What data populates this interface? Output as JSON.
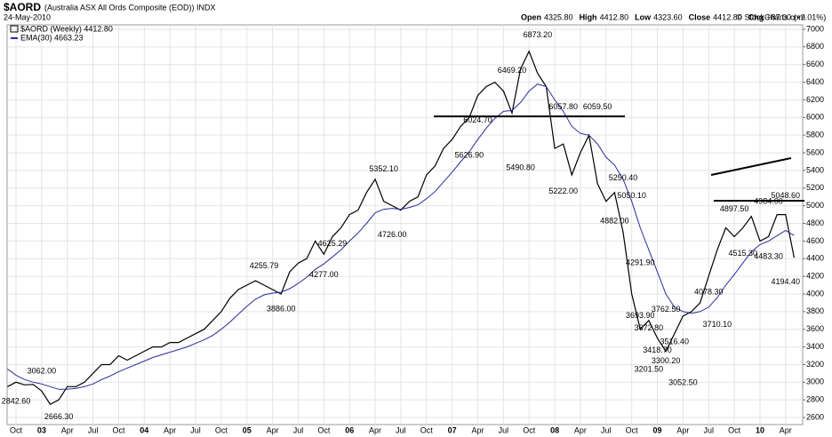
{
  "chart_data": {
    "type": "line",
    "title": "$AORD",
    "subtitle": "(Australia ASX All Ords Composite (EOD)) INDX",
    "date": "24-May-2010",
    "quote": [
      {
        "label": "Open",
        "value": "4325.80"
      },
      {
        "label": "High",
        "value": "4412.80"
      },
      {
        "label": "Low",
        "value": "4323.60"
      },
      {
        "label": "Close",
        "value": "4412.80"
      },
      {
        "label": "Chg",
        "value": "+87.00 (+2.01%)"
      }
    ],
    "credit": "© StockCharts.com",
    "categories": [
      null,
      "Oct",
      null,
      null,
      "03",
      null,
      null,
      "Apr",
      null,
      null,
      "Jul",
      null,
      null,
      "Oct",
      null,
      null,
      "04",
      null,
      null,
      "Apr",
      null,
      null,
      "Jul",
      null,
      null,
      "Oct",
      null,
      null,
      "05",
      null,
      null,
      "Apr",
      null,
      null,
      "Jul",
      null,
      null,
      "Oct",
      null,
      null,
      "06",
      null,
      null,
      "Apr",
      null,
      null,
      "Jul",
      null,
      null,
      "Oct",
      null,
      null,
      "07",
      null,
      null,
      "Apr",
      null,
      null,
      "Jul",
      null,
      null,
      "Oct",
      null,
      null,
      "08",
      null,
      null,
      "Apr",
      null,
      null,
      "Jul",
      null,
      null,
      "Oct",
      null,
      null,
      "09",
      null,
      null,
      "Apr",
      null,
      null,
      "Jul",
      null,
      null,
      "Oct",
      null,
      null,
      "10",
      null,
      null,
      "Apr",
      null
    ],
    "series": [
      {
        "name": "$AORD (Weekly) 4412.80",
        "color": "#000000",
        "values": [
          2950,
          3000,
          2970,
          2975,
          2900,
          2750,
          2800,
          2950,
          2950,
          3000,
          3100,
          3200,
          3200,
          3300,
          3250,
          3300,
          3350,
          3400,
          3400,
          3450,
          3450,
          3500,
          3550,
          3600,
          3700,
          3800,
          3950,
          4050,
          4100,
          4150,
          4100,
          4050,
          4000,
          4250,
          4350,
          4400,
          4600,
          4450,
          4650,
          4750,
          4900,
          4950,
          5150,
          5300,
          5050,
          5000,
          4950,
          5050,
          5100,
          5350,
          5450,
          5650,
          5750,
          5900,
          6000,
          6250,
          6350,
          6400,
          6300,
          6050,
          6550,
          6750,
          6500,
          6350,
          5650,
          5700,
          5350,
          5600,
          5800,
          5250,
          5050,
          5150,
          4700,
          4000,
          3600,
          3700,
          3500,
          3350,
          3550,
          3750,
          3800,
          3900,
          4200,
          4500,
          4750,
          4650,
          4750,
          4880,
          4600,
          4650,
          4900,
          4900,
          4412
        ]
      },
      {
        "name": "EMA(30) 4663.23",
        "color": "#2b2b9b",
        "values": [
          3150,
          3080,
          3030,
          3000,
          2980,
          2950,
          2920,
          2920,
          2930,
          2950,
          2980,
          3030,
          3070,
          3120,
          3160,
          3200,
          3240,
          3280,
          3310,
          3340,
          3370,
          3400,
          3440,
          3480,
          3530,
          3600,
          3680,
          3770,
          3860,
          3940,
          3990,
          4010,
          4020,
          4060,
          4120,
          4190,
          4280,
          4340,
          4420,
          4500,
          4600,
          4690,
          4800,
          4920,
          4960,
          4970,
          4960,
          4980,
          5010,
          5080,
          5160,
          5270,
          5380,
          5500,
          5610,
          5750,
          5880,
          5990,
          6070,
          6080,
          6170,
          6300,
          6380,
          6350,
          6200,
          6070,
          5900,
          5820,
          5800,
          5700,
          5550,
          5460,
          5300,
          5050,
          4750,
          4500,
          4250,
          4000,
          3850,
          3800,
          3780,
          3800,
          3850,
          3960,
          4100,
          4220,
          4350,
          4480,
          4560,
          4600,
          4660,
          4720,
          4663
        ]
      }
    ],
    "annotations": [
      {
        "label": "2842.60",
        "value": 2842.6,
        "index": 1
      },
      {
        "label": "3062.00",
        "value": 3062,
        "index": 4
      },
      {
        "label": "2666.30",
        "value": 2666.3,
        "index": 6
      },
      {
        "label": "4255.79",
        "value": 4255.79,
        "index": 30
      },
      {
        "label": "3886.00",
        "value": 3886,
        "index": 32
      },
      {
        "label": "4277.00",
        "value": 4277,
        "index": 37
      },
      {
        "label": "4625.29",
        "value": 4625.29,
        "index": 38
      },
      {
        "label": "5352.10",
        "value": 5352.1,
        "index": 44
      },
      {
        "label": "4726.00",
        "value": 4726,
        "index": 45
      },
      {
        "label": "5626.90",
        "value": 5626.9,
        "index": 54
      },
      {
        "label": "6024.70",
        "value": 6024.7,
        "index": 55
      },
      {
        "label": "6469.20",
        "value": 6469.2,
        "index": 59
      },
      {
        "label": "5490.80",
        "value": 5490.8,
        "index": 60
      },
      {
        "label": "6873.20",
        "value": 6873.2,
        "index": 62
      },
      {
        "label": "6057.80",
        "value": 6057.8,
        "index": 65
      },
      {
        "label": "5222.00",
        "value": 5222,
        "index": 65
      },
      {
        "label": "6059.50",
        "value": 6059.5,
        "index": 69
      },
      {
        "label": "4882.00",
        "value": 4882,
        "index": 71
      },
      {
        "label": "5250.40",
        "value": 5250.4,
        "index": 72
      },
      {
        "label": "5050.10",
        "value": 5050.1,
        "index": 73
      },
      {
        "label": "4291.90",
        "value": 4291.9,
        "index": 74
      },
      {
        "label": "3693.90",
        "value": 3693.9,
        "index": 74
      },
      {
        "label": "3672.80",
        "value": 3672.8,
        "index": 75
      },
      {
        "label": "3201.50",
        "value": 3201.5,
        "index": 75
      },
      {
        "label": "3418.70",
        "value": 3418.7,
        "index": 76
      },
      {
        "label": "3762.50",
        "value": 3762.5,
        "index": 77
      },
      {
        "label": "3516.40",
        "value": 3516.4,
        "index": 78
      },
      {
        "label": "3300.20",
        "value": 3300.2,
        "index": 77
      },
      {
        "label": "3052.50",
        "value": 3052.5,
        "index": 79
      },
      {
        "label": "4078.30",
        "value": 4078.3,
        "index": 82
      },
      {
        "label": "3710.10",
        "value": 3710.1,
        "index": 83
      },
      {
        "label": "4897.50",
        "value": 4897.5,
        "index": 85
      },
      {
        "label": "4515.30",
        "value": 4515.3,
        "index": 86
      },
      {
        "label": "4984.00",
        "value": 4984,
        "index": 89
      },
      {
        "label": "4483.30",
        "value": 4483.3,
        "index": 89
      },
      {
        "label": "5048.60",
        "value": 5048.6,
        "index": 91
      },
      {
        "label": "4194.40",
        "value": 4194.4,
        "index": 91
      }
    ],
    "ylim": [
      2520,
      7050
    ],
    "yticks": [
      2600,
      2800,
      3000,
      3200,
      3400,
      3600,
      3800,
      4000,
      4200,
      4400,
      4600,
      4800,
      5000,
      5200,
      5400,
      5600,
      5800,
      6000,
      6200,
      6400,
      6600,
      6800,
      7000
    ],
    "grid": true
  }
}
